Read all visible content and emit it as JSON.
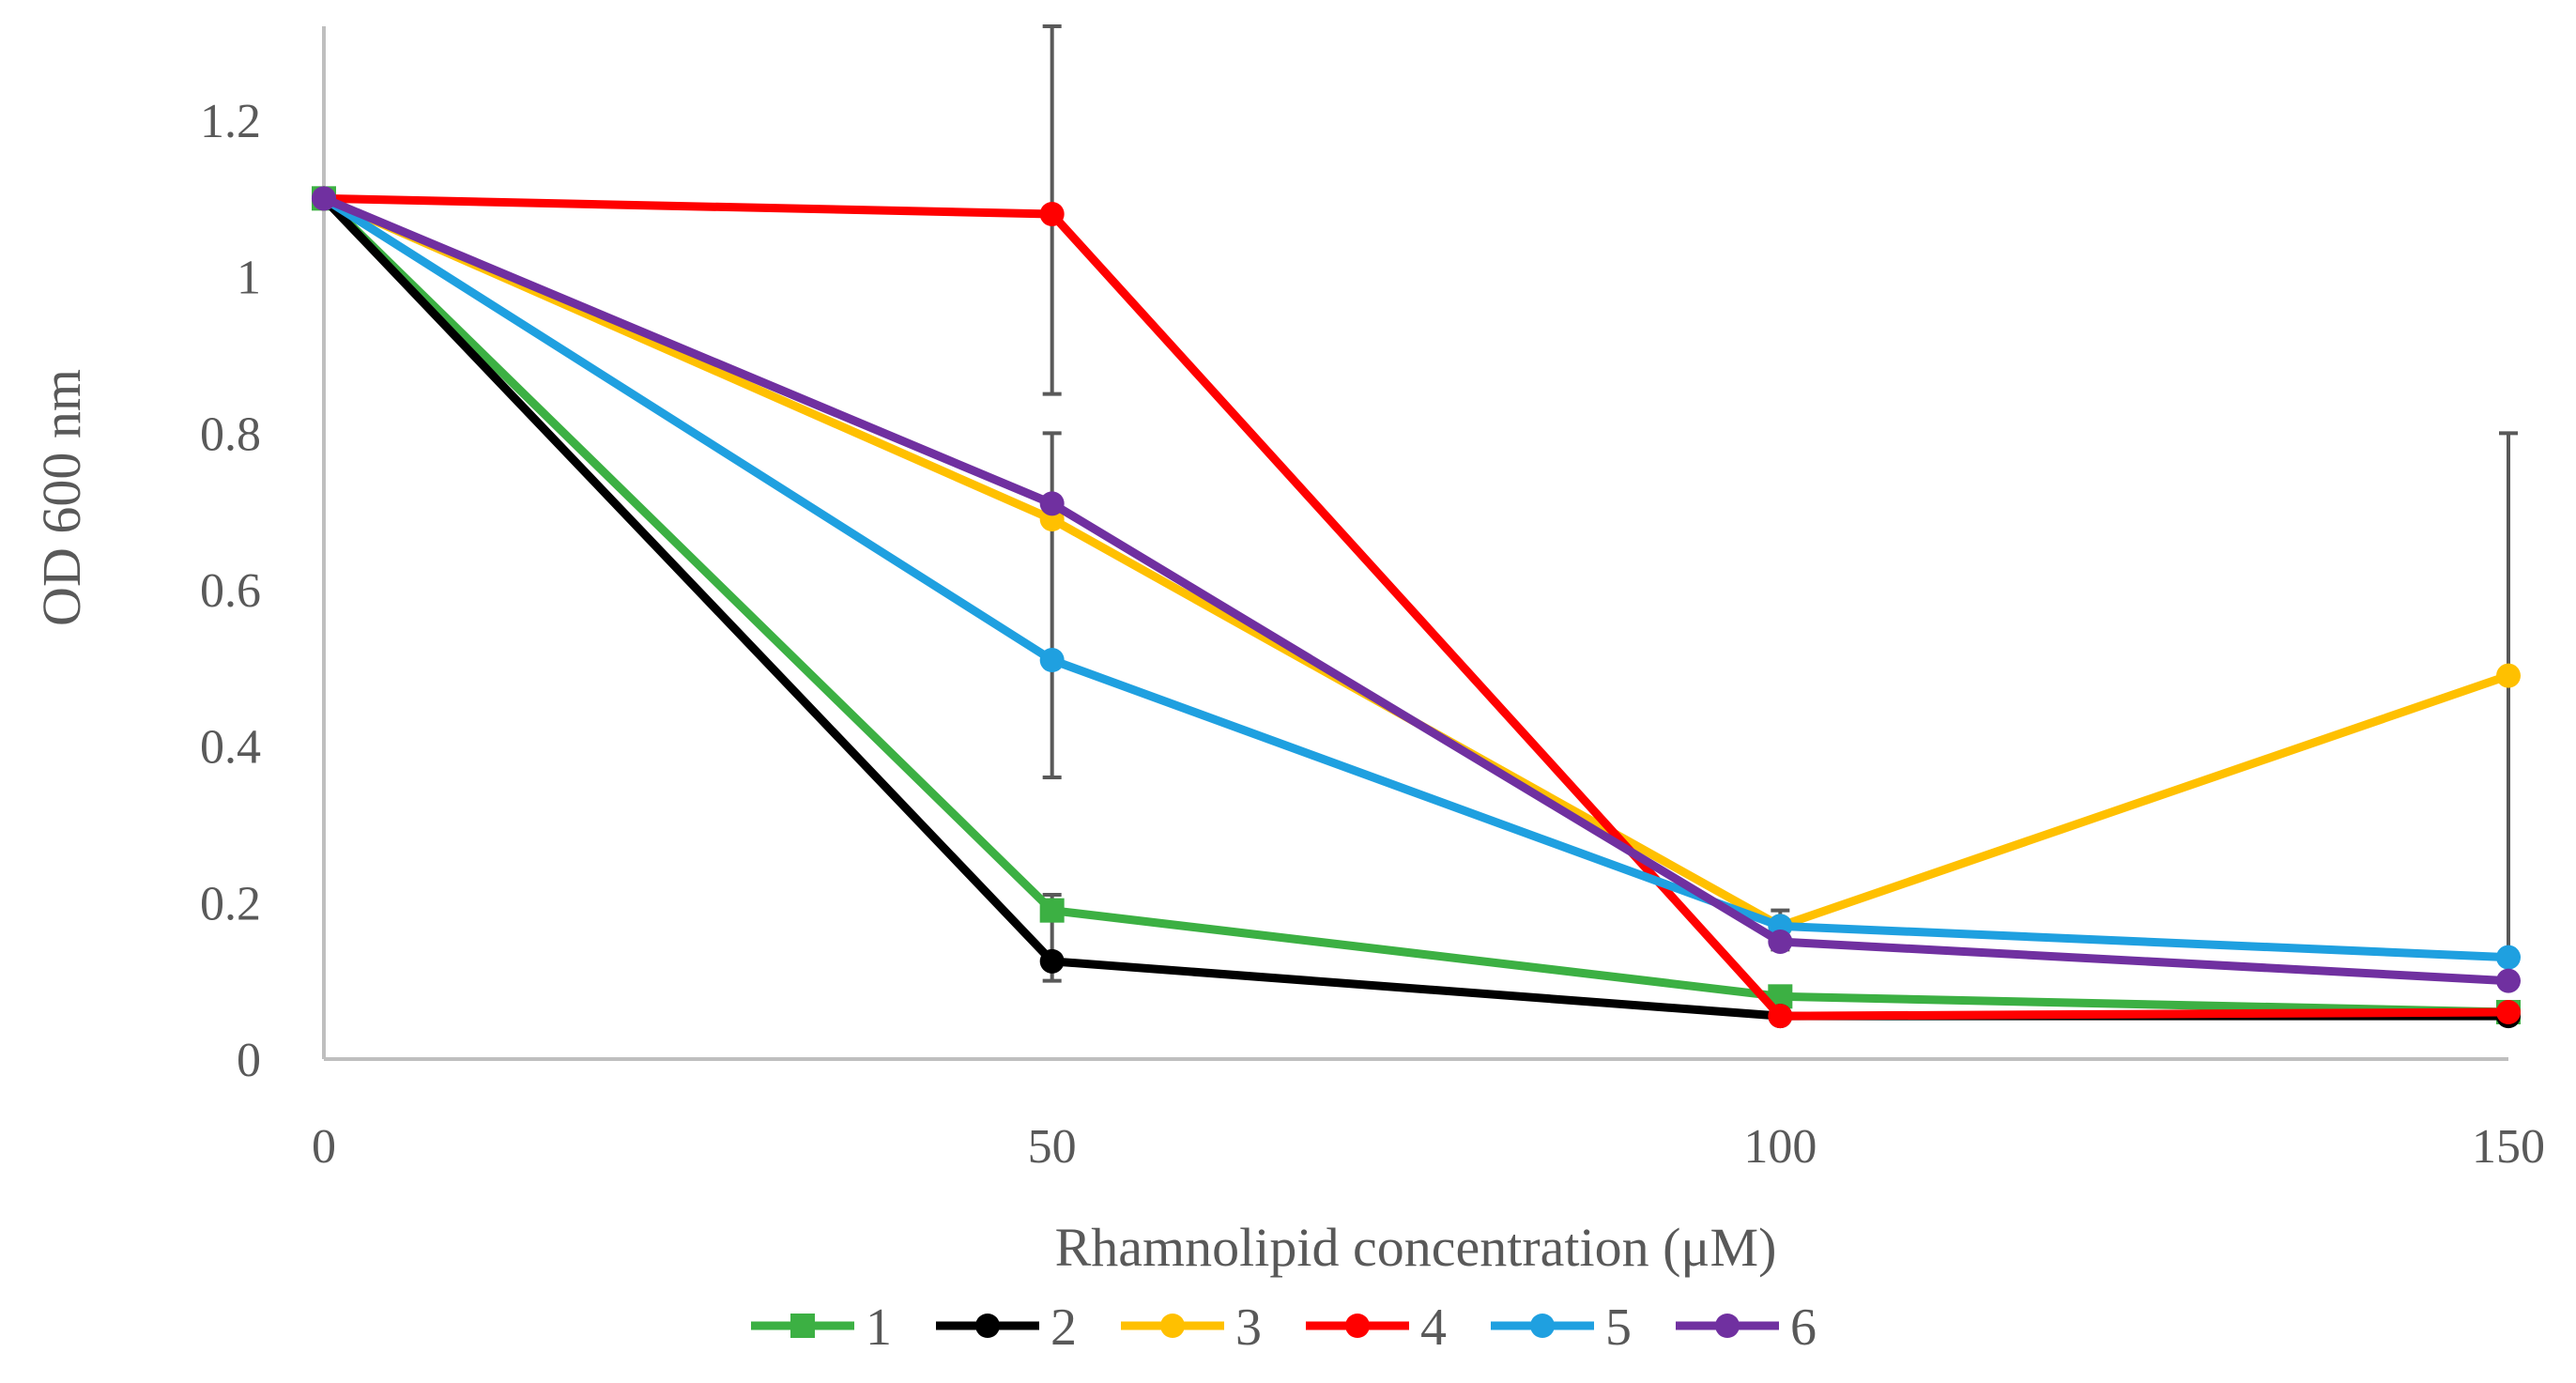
{
  "chart_data": {
    "type": "line",
    "title": "",
    "xlabel": "Rhamnolipid concentration (μM)",
    "ylabel": "OD 600 nm",
    "x": [
      0,
      50,
      100,
      150
    ],
    "x_ticks": [
      "0",
      "50",
      "100",
      "150"
    ],
    "y_ticks": [
      "0",
      "0.2",
      "0.4",
      "0.6",
      "0.8",
      "1",
      "1.2"
    ],
    "ylim": [
      0,
      1.32
    ],
    "grid": false,
    "legend_position": "bottom",
    "series": [
      {
        "name": "1",
        "color": "#3cb043",
        "marker": "square",
        "values": [
          1.1,
          0.19,
          0.08,
          0.06
        ]
      },
      {
        "name": "2",
        "color": "#000000",
        "marker": "circle",
        "values": [
          1.1,
          0.125,
          0.055,
          0.055
        ]
      },
      {
        "name": "3",
        "color": "#ffc000",
        "marker": "circle",
        "values": [
          1.1,
          0.69,
          0.17,
          0.49
        ]
      },
      {
        "name": "4",
        "color": "#ff0000",
        "marker": "circle",
        "values": [
          1.1,
          1.08,
          0.055,
          0.06
        ]
      },
      {
        "name": "5",
        "color": "#1fa0e0",
        "marker": "circle",
        "values": [
          1.1,
          0.51,
          0.17,
          0.13
        ]
      },
      {
        "name": "6",
        "color": "#7030a0",
        "marker": "circle",
        "values": [
          1.1,
          0.71,
          0.15,
          0.1
        ]
      }
    ],
    "error_bars": [
      {
        "x": 50,
        "low": 0.85,
        "high": 1.32
      },
      {
        "x": 50,
        "low": 0.36,
        "high": 0.8
      },
      {
        "x": 50,
        "low": 0.1,
        "high": 0.21
      },
      {
        "x": 100,
        "low": 0.14,
        "high": 0.19
      },
      {
        "x": 150,
        "low": 0.1,
        "high": 0.8
      }
    ]
  }
}
